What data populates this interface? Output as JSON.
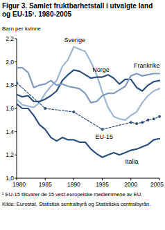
{
  "chart_data": {
    "type": "line",
    "title": "Figur 3. Samlet fruktbarhetstall i utvalgte land og EU-15¹. 1980-2005",
    "y_label": "Barn per kvinne",
    "footnote": "¹ EU-15 tilsvarer de 15 vest-europeiske medlemmene av EU.",
    "source": "Kilde: Eurostat, Statistisk sentralbyrå og Statistiska centralbyrån.",
    "x": [
      1980,
      1981,
      1982,
      1983,
      1984,
      1985,
      1986,
      1987,
      1988,
      1989,
      1990,
      1991,
      1992,
      1993,
      1994,
      1995,
      1996,
      1997,
      1998,
      1999,
      2000,
      2001,
      2002,
      2003,
      2004,
      2005
    ],
    "xlim": [
      1980,
      2005
    ],
    "xticks": [
      1980,
      1985,
      1990,
      1995,
      2000,
      2005
    ],
    "ylim": [
      1.0,
      2.2
    ],
    "yticks": [
      {
        "value": 1.0,
        "label": "1,0"
      },
      {
        "value": 1.2,
        "label": "1,2"
      },
      {
        "value": 1.4,
        "label": "1,4"
      },
      {
        "value": 1.6,
        "label": "1,6"
      },
      {
        "value": 1.8,
        "label": "1,8"
      },
      {
        "value": 2.0,
        "label": "2,0"
      },
      {
        "value": 2.2,
        "label": "2,2"
      }
    ],
    "grid": false,
    "series": [
      {
        "name": "Sverige",
        "color": "#9fb6d3",
        "line_style": "solid",
        "values": [
          1.68,
          1.63,
          1.62,
          1.61,
          1.65,
          1.73,
          1.79,
          1.84,
          1.96,
          2.02,
          2.13,
          2.11,
          2.09,
          2.0,
          1.89,
          1.74,
          1.61,
          1.53,
          1.51,
          1.5,
          1.54,
          1.57,
          1.65,
          1.71,
          1.75,
          1.77
        ]
      },
      {
        "name": "Norge",
        "color": "#2c4f7c",
        "line_style": "solid",
        "values": [
          1.72,
          1.7,
          1.71,
          1.66,
          1.66,
          1.68,
          1.71,
          1.75,
          1.84,
          1.89,
          1.93,
          1.92,
          1.89,
          1.86,
          1.87,
          1.87,
          1.89,
          1.86,
          1.81,
          1.85,
          1.85,
          1.78,
          1.75,
          1.8,
          1.83,
          1.84
        ]
      },
      {
        "name": "Frankrike",
        "color": "#7f9bbf",
        "line_style": "solid",
        "values": [
          1.95,
          1.95,
          1.91,
          1.78,
          1.8,
          1.81,
          1.84,
          1.8,
          1.81,
          1.79,
          1.78,
          1.77,
          1.73,
          1.65,
          1.66,
          1.71,
          1.73,
          1.73,
          1.76,
          1.79,
          1.88,
          1.9,
          1.88,
          1.89,
          1.9,
          1.9
        ]
      },
      {
        "name": "EU-15",
        "color": "#2c4f7c",
        "line_style": "dashed",
        "marker": "circle",
        "x": [
          1980,
          1985,
          1990,
          1995,
          2000,
          2001,
          2002,
          2003,
          2004,
          2005
        ],
        "values": [
          1.82,
          1.6,
          1.57,
          1.42,
          1.48,
          1.47,
          1.48,
          1.5,
          1.51,
          1.53
        ]
      },
      {
        "name": "Italia",
        "color": "#2c4f7c",
        "line_style": "solid",
        "values": [
          1.64,
          1.6,
          1.6,
          1.54,
          1.46,
          1.42,
          1.35,
          1.32,
          1.35,
          1.33,
          1.33,
          1.31,
          1.31,
          1.25,
          1.21,
          1.18,
          1.2,
          1.22,
          1.2,
          1.22,
          1.24,
          1.25,
          1.27,
          1.29,
          1.33,
          1.34
        ]
      }
    ]
  }
}
